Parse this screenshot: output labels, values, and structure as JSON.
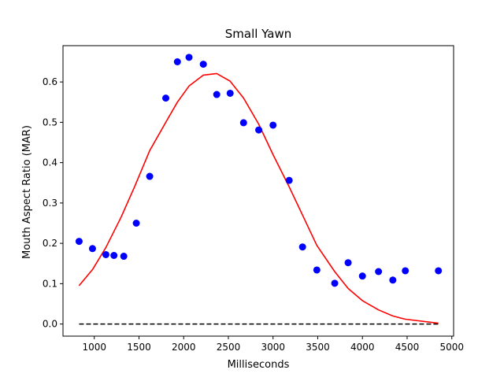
{
  "chart_data": {
    "type": "scatter",
    "title": "Small Yawn",
    "xlabel": "Milliseconds",
    "ylabel": "Mouth Aspect Ratio (MAR)",
    "xlim": [
      650,
      5020
    ],
    "ylim": [
      -0.03,
      0.69
    ],
    "xticks": [
      1000,
      1500,
      2000,
      2500,
      3000,
      3500,
      4000,
      4500,
      5000
    ],
    "xtick_labels": [
      "1000",
      "1500",
      "2000",
      "2500",
      "3000",
      "3500",
      "4000",
      "4500",
      "5000"
    ],
    "yticks": [
      0.0,
      0.1,
      0.2,
      0.3,
      0.4,
      0.5,
      0.6
    ],
    "ytick_labels": [
      "0.0",
      "0.1",
      "0.2",
      "0.3",
      "0.4",
      "0.5",
      "0.6"
    ],
    "grid": false,
    "legend": "none",
    "colors": {
      "points": "#0000ff",
      "fit_line": "#ff0000",
      "baseline": "#000000"
    },
    "points": {
      "x": [
        830,
        980,
        1130,
        1220,
        1330,
        1470,
        1620,
        1800,
        1930,
        2060,
        2220,
        2370,
        2520,
        2670,
        2840,
        3000,
        3180,
        3330,
        3490,
        3690,
        3840,
        4000,
        4180,
        4340,
        4480,
        4850
      ],
      "y": [
        0.205,
        0.187,
        0.172,
        0.17,
        0.168,
        0.25,
        0.366,
        0.56,
        0.65,
        0.661,
        0.644,
        0.569,
        0.572,
        0.499,
        0.481,
        0.493,
        0.356,
        0.191,
        0.134,
        0.101,
        0.152,
        0.119,
        0.13,
        0.109,
        0.132,
        0.132
      ]
    },
    "fit_line": {
      "x": [
        830,
        980,
        1130,
        1300,
        1450,
        1620,
        1800,
        1930,
        2060,
        2220,
        2370,
        2520,
        2670,
        2840,
        3000,
        3180,
        3330,
        3490,
        3690,
        3840,
        4000,
        4180,
        4340,
        4480,
        4850
      ],
      "y": [
        0.095,
        0.135,
        0.19,
        0.265,
        0.34,
        0.43,
        0.5,
        0.55,
        0.59,
        0.617,
        0.621,
        0.602,
        0.56,
        0.495,
        0.42,
        0.34,
        0.27,
        0.195,
        0.13,
        0.088,
        0.058,
        0.035,
        0.02,
        0.012,
        0.002
      ]
    },
    "baseline": {
      "x": [
        830,
        4850
      ],
      "y": [
        0.0,
        0.0
      ],
      "style": "dashed"
    }
  }
}
